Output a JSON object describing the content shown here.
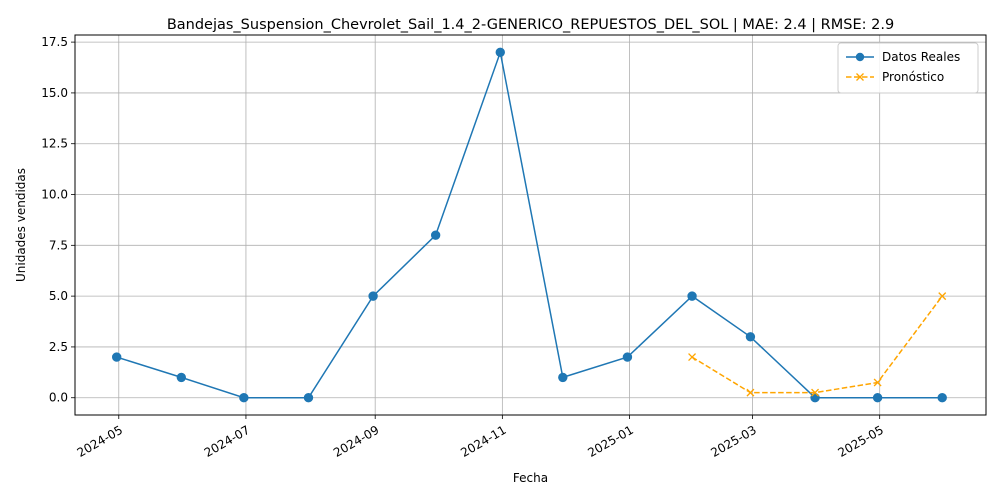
{
  "chart_data": {
    "type": "line",
    "title": "Bandejas_Suspension_Chevrolet_Sail_1.4_2-GENERICO_REPUESTOS_DEL_SOL | MAE: 2.4 | RMSE: 2.9",
    "xlabel": "Fecha",
    "ylabel": "Unidades vendidas",
    "grid": true,
    "legend_position": "top-right",
    "xlim": [
      "2024-04-10",
      "2025-06-21"
    ],
    "ylim": [
      -0.85,
      17.85
    ],
    "x_ticks": [
      "2024-05",
      "2024-07",
      "2024-09",
      "2024-11",
      "2025-01",
      "2025-03",
      "2025-05"
    ],
    "y_ticks": [
      "0.0",
      "2.5",
      "5.0",
      "7.5",
      "10.0",
      "12.5",
      "15.0",
      "17.5"
    ],
    "series": [
      {
        "name": "Datos Reales",
        "color": "#1f77b4",
        "marker": "circle",
        "linestyle": "solid",
        "x": [
          "2024-04-30",
          "2024-05-31",
          "2024-06-30",
          "2024-07-31",
          "2024-08-31",
          "2024-09-30",
          "2024-10-31",
          "2024-11-30",
          "2024-12-31",
          "2025-01-31",
          "2025-02-28",
          "2025-03-31",
          "2025-04-30",
          "2025-05-31"
        ],
        "values": [
          2,
          1,
          0,
          0,
          5,
          8,
          17,
          1,
          2,
          5,
          3,
          0,
          0,
          0
        ]
      },
      {
        "name": "Pronóstico",
        "color": "#ffa500",
        "marker": "x",
        "linestyle": "dashed",
        "x": [
          "2025-01-31",
          "2025-02-28",
          "2025-03-31",
          "2025-04-30",
          "2025-05-31"
        ],
        "values": [
          2,
          0.25,
          0.25,
          0.75,
          5
        ]
      }
    ]
  }
}
